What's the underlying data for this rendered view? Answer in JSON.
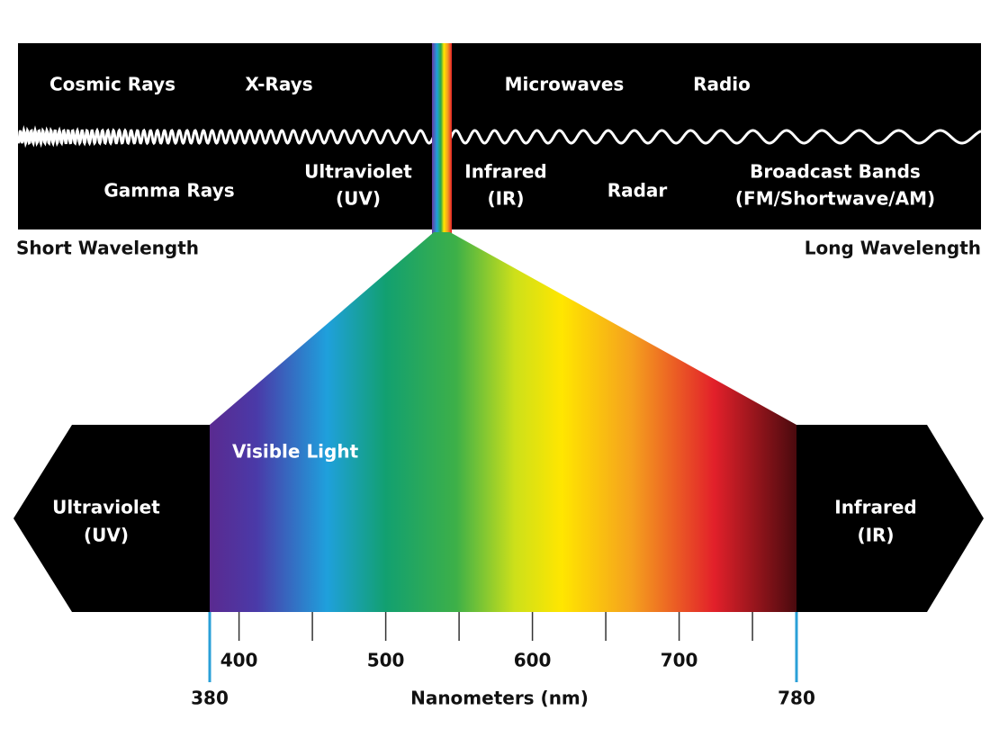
{
  "top_band": {
    "above": [
      "Cosmic Rays",
      "X-Rays",
      "Microwaves",
      "Radio"
    ],
    "below": [
      [
        "Gamma Rays"
      ],
      [
        "Ultraviolet",
        "(UV)"
      ],
      [
        "Infrared",
        "(IR)"
      ],
      [
        "Radar"
      ],
      [
        "Broadcast Bands",
        "(FM/Shortwave/AM)"
      ]
    ]
  },
  "short_wavelength": "Short Wavelength",
  "long_wavelength": "Long Wavelength",
  "visible": {
    "title": "Visible Light",
    "left": [
      "Ultraviolet",
      "(UV)"
    ],
    "right": [
      "Infrared",
      "(IR)"
    ]
  },
  "axis": {
    "label": "Nanometers (nm)",
    "min": 380,
    "max": 780,
    "ticks": [
      380,
      400,
      500,
      600,
      700,
      780
    ],
    "minor_ticks": [
      450,
      550,
      650,
      750
    ]
  }
}
